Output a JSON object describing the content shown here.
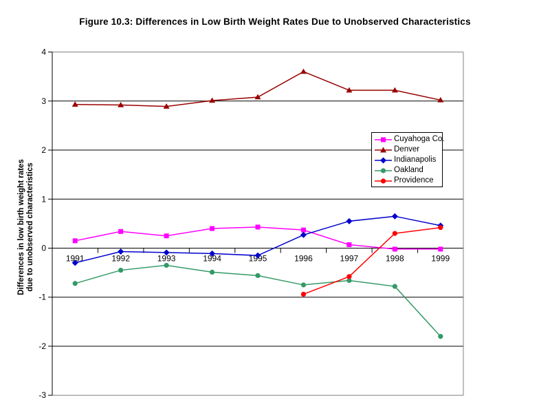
{
  "figure": {
    "title": "Figure 10.3:  Differences in  Low Birth Weight Rates  Due to Unobserved Characteristics"
  },
  "chart_data": {
    "type": "line",
    "title": "Figure 10.3:  Differences in  Low Birth Weight Rates  Due to Unobserved Characteristics",
    "xlabel": "",
    "ylabel_lines": [
      "Differences in low birth weight rates",
      "due to unobserved characteristics"
    ],
    "categories": [
      "1991",
      "1992",
      "1993",
      "1994",
      "1995",
      "1996",
      "1997",
      "1998",
      "1999"
    ],
    "y_ticks": [
      4,
      3,
      2,
      1,
      0,
      -1,
      -2,
      -3
    ],
    "ylim": [
      -3,
      4
    ],
    "grid": "horizontal-black-lines",
    "legend_position": "inside-right-middle",
    "axis_color": "#000000",
    "border_color": "#808080",
    "series": [
      {
        "name": "Cuyahoga Co.",
        "color": "#FF00FF",
        "marker": "square",
        "values": [
          0.15,
          0.34,
          0.25,
          0.4,
          0.43,
          0.37,
          0.07,
          -0.02,
          -0.02
        ]
      },
      {
        "name": "Denver",
        "color": "#990000",
        "marker": "triangle",
        "values": [
          2.93,
          2.92,
          2.89,
          3.01,
          3.08,
          3.6,
          3.22,
          3.22,
          3.02
        ]
      },
      {
        "name": "Indianapolis",
        "color": "#0000CC",
        "marker": "diamond",
        "values": [
          -0.3,
          -0.07,
          -0.09,
          -0.11,
          -0.15,
          0.27,
          0.55,
          0.65,
          0.46
        ]
      },
      {
        "name": "Oakland",
        "color": "#339966",
        "marker": "circle",
        "values": [
          -0.72,
          -0.45,
          -0.35,
          -0.49,
          -0.56,
          -0.75,
          -0.66,
          -0.78,
          -1.8
        ]
      },
      {
        "name": "Providence",
        "color": "#FF0000",
        "marker": "circle",
        "values": [
          null,
          null,
          null,
          null,
          null,
          -0.94,
          -0.58,
          0.3,
          0.42
        ]
      }
    ]
  }
}
